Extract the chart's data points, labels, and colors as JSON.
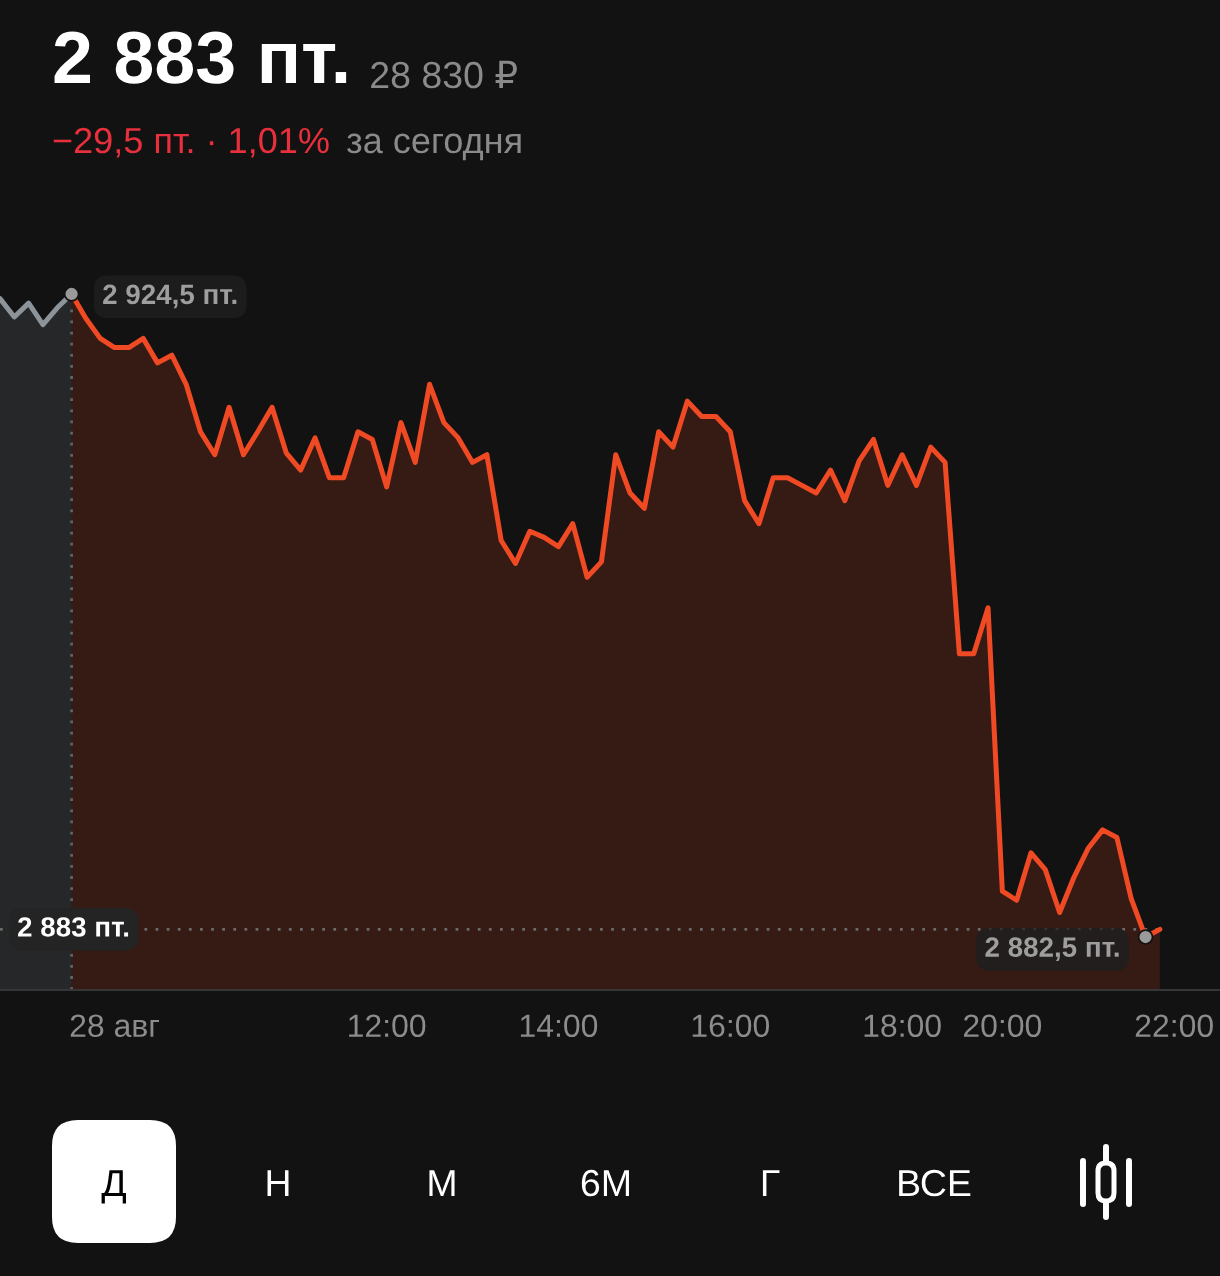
{
  "chart_data": {
    "type": "area",
    "title": "2 883 пт.",
    "subtitle": "28 830 ₽",
    "annotations": [
      "−29,5 пт. · 1,01%",
      "за сегодня",
      "Д",
      "Н",
      "М",
      "6М",
      "Г",
      "ВСЕ"
    ],
    "categories": [
      null,
      null,
      null,
      null,
      null,
      null,
      null,
      null,
      "28 авг",
      null,
      null,
      null,
      null,
      null,
      null,
      null,
      null,
      null,
      null,
      null,
      null,
      null,
      null,
      null,
      null,
      null,
      null,
      "12:00",
      null,
      null,
      null,
      null,
      null,
      null,
      null,
      null,
      null,
      null,
      null,
      "14:00",
      null,
      null,
      null,
      null,
      null,
      null,
      null,
      null,
      null,
      null,
      null,
      "16:00",
      null,
      null,
      null,
      null,
      null,
      null,
      null,
      null,
      null,
      null,
      null,
      "18:00",
      null,
      null,
      null,
      null,
      null,
      null,
      "20:00",
      null,
      null,
      null,
      null,
      null,
      null,
      null,
      null,
      null,
      null,
      null,
      "22:00"
    ],
    "series": [
      {
        "color": "#8c9399",
        "values": [
          2924.2,
          2923.0,
          2923.9,
          2922.5,
          2923.6,
          2924.5,
          null,
          null,
          null,
          null,
          null,
          null,
          null,
          null,
          null,
          null,
          null,
          null,
          null,
          null,
          null,
          null,
          null,
          null,
          null,
          null,
          null,
          null,
          null,
          null,
          null,
          null,
          null,
          null,
          null,
          null,
          null,
          null,
          null,
          null,
          null,
          null,
          null,
          null,
          null,
          null,
          null,
          null,
          null,
          null,
          null,
          null,
          null,
          null,
          null,
          null,
          null,
          null,
          null,
          null,
          null,
          null,
          null,
          null,
          null,
          null,
          null,
          null,
          null,
          null,
          null,
          null,
          null,
          null,
          null,
          null,
          null,
          null,
          null,
          null,
          null,
          null,
          null
        ]
      },
      {
        "color": "#f04a24",
        "values": [
          null,
          null,
          null,
          null,
          null,
          2924.5,
          2922.9,
          2921.6,
          2921.0,
          2921.0,
          2921.6,
          2920.0,
          2920.5,
          2918.6,
          2915.5,
          2914.0,
          2917.1,
          2914.0,
          2915.5,
          2917.1,
          2914.1,
          2913.0,
          2915.1,
          2912.5,
          2912.5,
          2915.5,
          2915.0,
          2911.9,
          2916.1,
          2913.5,
          2918.6,
          2916.1,
          2915.1,
          2913.5,
          2914.0,
          2908.4,
          2906.9,
          2909.0,
          2908.6,
          2908.0,
          2909.5,
          2906.0,
          2907.0,
          2914.0,
          2911.5,
          2910.5,
          2915.5,
          2914.5,
          2917.5,
          2916.5,
          2916.5,
          2915.5,
          2911.0,
          2909.5,
          2912.5,
          2912.5,
          2912.0,
          2911.5,
          2913.0,
          2911.0,
          2913.6,
          2915.0,
          2912.0,
          2914.0,
          2912.0,
          2914.5,
          2913.5,
          2901.0,
          2901.0,
          2904.0,
          2885.5,
          2884.9,
          2888.0,
          2886.9,
          2884.1,
          2886.4,
          2888.3,
          2889.5,
          2889.0,
          2885.0,
          2882.5,
          2883.0,
          null
        ],
        "value_labels": [
          null,
          null,
          null,
          null,
          null,
          "2 924,5 пт.",
          null,
          null,
          null,
          null,
          null,
          null,
          null,
          null,
          null,
          null,
          null,
          null,
          null,
          null,
          null,
          null,
          null,
          null,
          null,
          null,
          null,
          null,
          null,
          null,
          null,
          null,
          null,
          null,
          null,
          null,
          null,
          null,
          null,
          null,
          null,
          null,
          null,
          null,
          null,
          null,
          null,
          null,
          null,
          null,
          null,
          null,
          null,
          null,
          null,
          null,
          null,
          null,
          null,
          null,
          null,
          null,
          null,
          null,
          null,
          null,
          null,
          null,
          null,
          null,
          null,
          null,
          null,
          null,
          null,
          null,
          null,
          null,
          null,
          null,
          "2 882,5 пт.",
          null,
          null
        ]
      }
    ],
    "tick_labels": "x",
    "ref_lines": [
      {
        "axis": "y",
        "value": 2883,
        "label": "2 883 пт.",
        "line_style": "dotted",
        "color": "#6a6a6a"
      }
    ]
  }
}
